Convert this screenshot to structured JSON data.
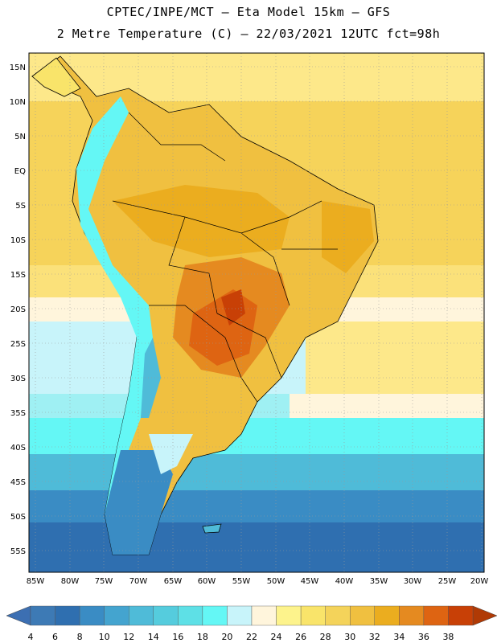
{
  "header": {
    "title_line1": "CPTEC/INPE/MCT –  Eta Model 15km – GFS",
    "title_line2": "2 Metre Temperature (C) – 22/03/2021 12UTC fct=98h"
  },
  "axes": {
    "lat_labels": [
      "15N",
      "10N",
      "5N",
      "EQ",
      "5S",
      "10S",
      "15S",
      "20S",
      "25S",
      "30S",
      "35S",
      "40S",
      "45S",
      "50S",
      "55S"
    ],
    "lon_labels": [
      "85W",
      "80W",
      "75W",
      "70W",
      "65W",
      "60W",
      "55W",
      "50W",
      "45W",
      "40W",
      "35W",
      "30W",
      "25W",
      "20W"
    ]
  },
  "colorbar": {
    "labels": [
      "4",
      "6",
      "8",
      "10",
      "12",
      "14",
      "16",
      "18",
      "20",
      "22",
      "24",
      "26",
      "28",
      "30",
      "32",
      "34",
      "36",
      "38"
    ],
    "colors": [
      "#3d7ab5",
      "#2f6fb0",
      "#3a8cc4",
      "#44a4cf",
      "#4fbbd8",
      "#55ccdd",
      "#5ee0e6",
      "#64f7f5",
      "#c8f4fa",
      "#fff5dc",
      "#fdf38c",
      "#f9e46a",
      "#f4d35a",
      "#f0c040",
      "#ebad1f",
      "#e58a20",
      "#de6412",
      "#c84006"
    ],
    "under_color": "#3c6fb2",
    "over_color": "#b03a05"
  }
}
